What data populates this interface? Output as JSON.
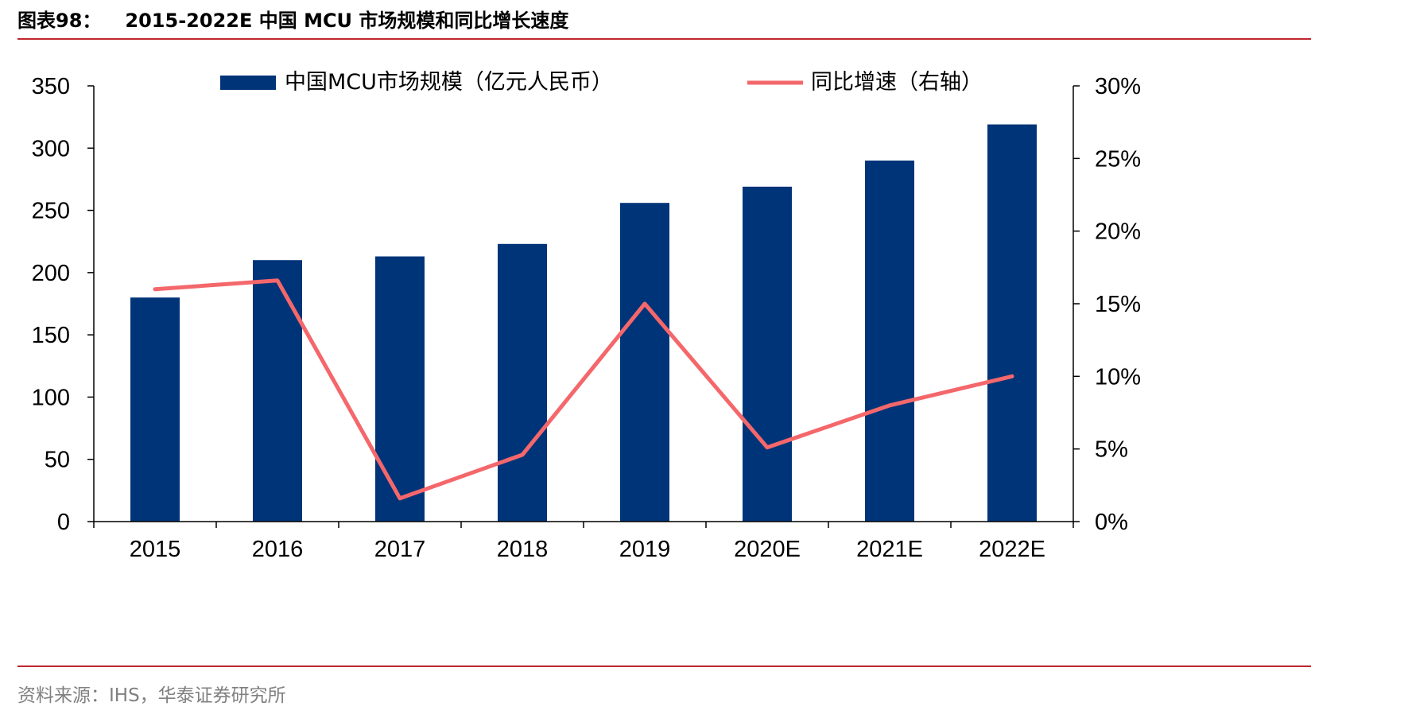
{
  "header": {
    "figure_number": "图表98：",
    "title": "2015-2022E 中国 MCU 市场规模和同比增长速度"
  },
  "footer": {
    "source": "资料来源：IHS，华泰证券研究所"
  },
  "colors": {
    "bar": "#003478",
    "line": "#f4676b",
    "rule": "#c0262d",
    "axis": "#000000"
  },
  "chart_data": {
    "type": "bar",
    "categories": [
      "2015",
      "2016",
      "2017",
      "2018",
      "2019",
      "2020E",
      "2021E",
      "2022E"
    ],
    "series": [
      {
        "name": "中国MCU市场规模（亿元人民币）",
        "type": "bar",
        "axis": "left",
        "values": [
          180,
          210,
          213,
          223,
          256,
          269,
          290,
          319
        ]
      },
      {
        "name": "同比增速（右轴）",
        "type": "line",
        "axis": "right",
        "values": [
          16.0,
          16.6,
          1.6,
          4.6,
          15.0,
          5.1,
          8.0,
          10.0
        ]
      }
    ],
    "left_axis": {
      "ylim": [
        0,
        350
      ],
      "ticks": [
        0,
        50,
        100,
        150,
        200,
        250,
        300,
        350
      ],
      "tick_labels": [
        "0",
        "50",
        "100",
        "150",
        "200",
        "250",
        "300",
        "350"
      ]
    },
    "right_axis": {
      "ylim": [
        0,
        30
      ],
      "ticks": [
        0,
        5,
        10,
        15,
        20,
        25,
        30
      ],
      "tick_labels": [
        "0%",
        "5%",
        "10%",
        "15%",
        "20%",
        "25%",
        "30%"
      ]
    },
    "legend_position": "top",
    "grid": false
  }
}
